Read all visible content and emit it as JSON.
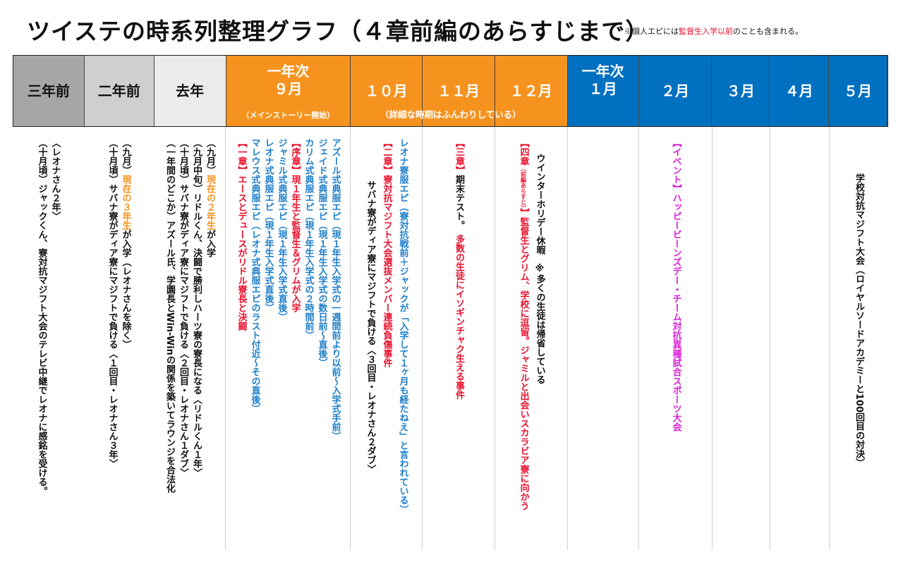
{
  "title": "ツイステの時系列整理グラフ（４章前編のあらすじまで）",
  "note": {
    "prefix": "※個人エピには",
    "highlight": "監督生入学以前",
    "suffix": "のことも含まれる。"
  },
  "header": {
    "c1": "三年前",
    "c2": "二年前",
    "c3": "去年",
    "sep_l1": "一年次",
    "sep_l2": "９月",
    "sep_sub": "（メインストーリー開始）",
    "oct": "１０月",
    "nov": "１１月",
    "dec": "１２月",
    "oct_sub": "（詳細な時期はふんわりしている）",
    "jan_l1": "一年次",
    "jan_l2": "１月",
    "feb": "２月",
    "mar": "３月",
    "apr": "４月",
    "may": "５月"
  },
  "colors": {
    "gray_dark": "#a6a6a6",
    "gray_mid": "#cfcfcf",
    "gray_light": "#ebebeb",
    "orange": "#f6931f",
    "blue": "#0070c0",
    "red": "#e8112d",
    "text_blue": "#1e7ec8",
    "magenta": "#d61fd6"
  },
  "col_3y": {
    "l1": "（十月頃）ジャックくん、寮対抗マジフト大会のテレビ中継でレオナに感銘を受ける。",
    "l2": "〈レオナさん２年〉"
  },
  "col_2y": {
    "l1": "（十月頃）サバナ寮がディア寮にマジフトで負ける〈１回目・レオナさん３年〉",
    "l2_pre": "（九月）",
    "l2_hl": "現在の３年生",
    "l2_post": "が入学（レオナさんを除く）"
  },
  "col_1y": {
    "l1": "（一年間のどこか）アズール氏、学園長とWin-Winの関係を築いてラウンジを合法化",
    "l2": "（十月頃）サバナ寮がディア寮にマジフトで負ける〈２回目・レオナさん１ダブ〉",
    "l3": "（九月中旬）リドルくん、決闘で勝利しハーツ寮の寮長になる〈リドルくん１年〉",
    "l4_pre": "（九月）",
    "l4_hl": "現在の２年生",
    "l4_post": "が入学"
  },
  "col_sep": {
    "c1_tag": "【一章】",
    "c1_text": "エースとデュースがリドル寮長と決闘",
    "m1": "マレウス式典服エピ（レオナ式典服エピのラスト付近～その直後）",
    "m2": "レオナ式典服エピ（現１年生入学式直後）",
    "m3": "ジャミル式典服エピ（現１年生入学式直後）",
    "prologue_tag": "【序章】",
    "prologue_text": "現１年生と監督生＆グリムが入学",
    "m4": "カリム式典服エピ（現１年生入学式の２時間前）",
    "m5": "ジェイド式典服エピ（現１年生入学式の数日前～直後）",
    "m6": "アズール式典服エピ（現１年生入学式の一週間前より以前～入学式手前）"
  },
  "col_oct": {
    "l1": "サバナ寮がディア寮にマジフトで負ける〈３回目・レオナさん２ダブ〉",
    "c2_tag": "【二章】",
    "c2_text": "寮対抗マジフト大会選抜メンバー連続負傷事件",
    "l3": "レオナ寮服エピ（寮対抗戦前＋ジャックが「入学して１ヶ月も経たねえ」と言われている）"
  },
  "col_nov": {
    "c3_tag": "【三章】",
    "c3_a": "期末テスト。",
    "c3_b": "多数の生徒にイソギンチャク生える事件"
  },
  "col_dec": {
    "c4_tag_open": "【四章",
    "c4_tag_small": "（前編あらすじ）",
    "c4_tag_close": "】",
    "c4_text": "監督生とグリム、学校に逗留。ジャミルと出会いスカラビア寮に向かう",
    "l2": "ウインターホリデー休暇　※多くの生徒は帰省している"
  },
  "col_feb": {
    "tag": "【イベント】",
    "text": "ハッピービーンズデー・チーム対抗異種試合スポーツ大会"
  },
  "col_may": {
    "text": "学校対抗マジフト大会（ロイヤルソードアカデミーと100回目の対決）"
  }
}
